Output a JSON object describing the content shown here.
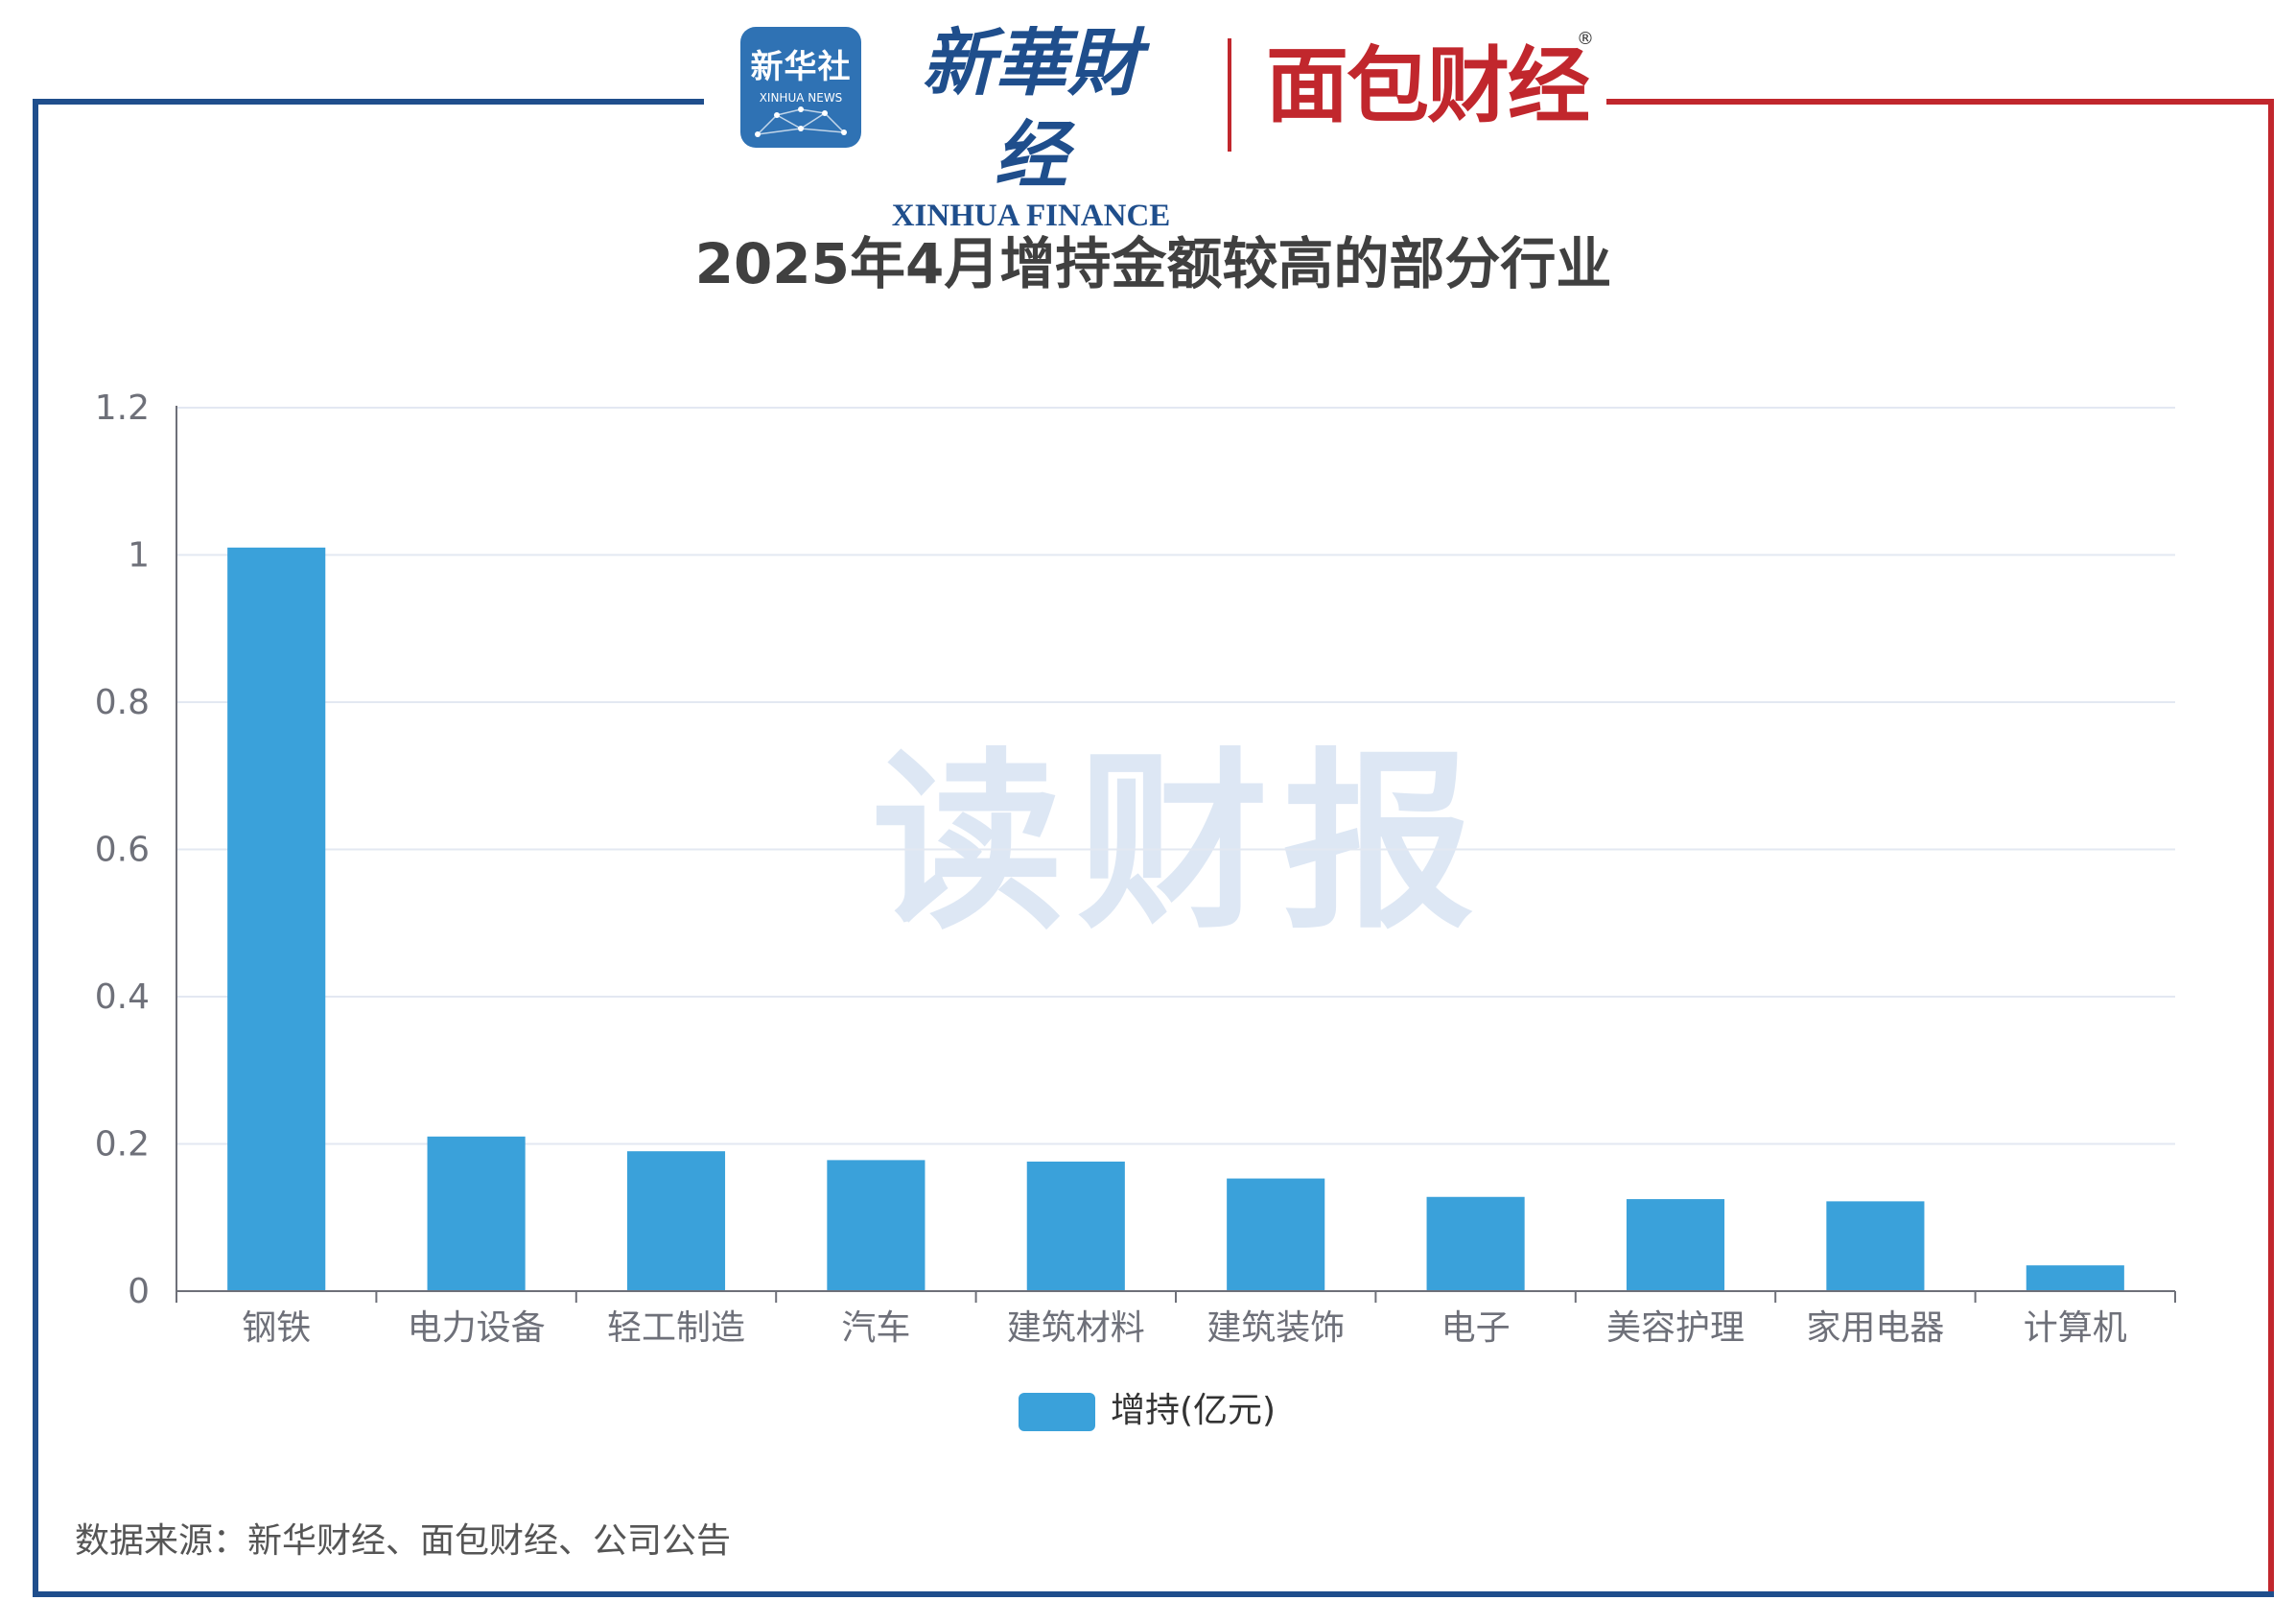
{
  "header": {
    "xinhua_news_logo_cn": "新华社",
    "xinhua_news_logo_en": "XINHUA NEWS",
    "xinhua_finance_cn": "新華財经",
    "xinhua_finance_en": "XINHUA FINANCE",
    "mianbao_finance": "面包财经",
    "registered_mark": "®"
  },
  "watermark": "读财报",
  "colors": {
    "bar": "#3aa1da",
    "frame_left": "#1f4e8c",
    "frame_right": "#c1272d",
    "gridline": "#e3e8f2",
    "axis": "#6e7079",
    "tick_text": "#6e7079"
  },
  "chart_data": {
    "type": "bar",
    "title": "2025年4月增持金额较高的部分行业",
    "categories": [
      "钢铁",
      "电力设备",
      "轻工制造",
      "汽车",
      "建筑材料",
      "建筑装饰",
      "电子",
      "美容护理",
      "家用电器",
      "计算机"
    ],
    "series": [
      {
        "name": "增持(亿元)",
        "values": [
          1.01,
          0.21,
          0.19,
          0.178,
          0.176,
          0.153,
          0.128,
          0.125,
          0.122,
          0.035
        ]
      }
    ],
    "ylim": [
      0,
      1.2
    ],
    "yticks": [
      "0",
      "0.2",
      "0.4",
      "0.6",
      "0.8",
      "1",
      "1.2"
    ],
    "ytick_values": [
      0,
      0.2,
      0.4,
      0.6,
      0.8,
      1,
      1.2
    ],
    "grid": true,
    "legend_position": "bottom-center"
  },
  "footer": {
    "source": "数据来源：新华财经、面包财经、公司公告"
  }
}
